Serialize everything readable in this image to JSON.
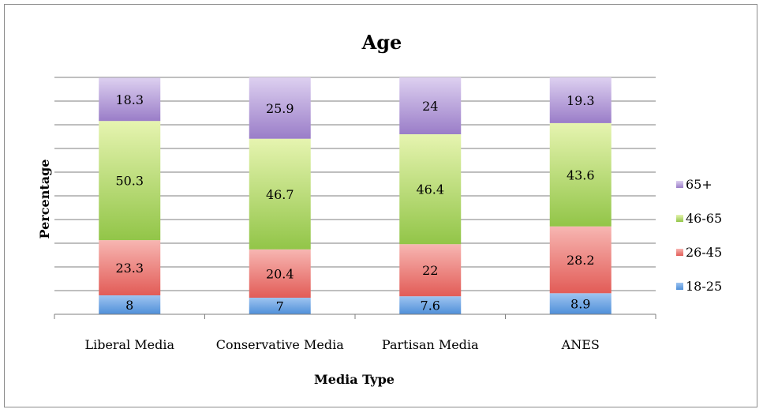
{
  "chart_data": {
    "type": "bar",
    "stacked": true,
    "title": "Age",
    "xlabel": "Media Type",
    "ylabel": "Percentage",
    "ylim": [
      0,
      100
    ],
    "grid": true,
    "legend_position": "right",
    "categories": [
      "Liberal Media",
      "Conservative Media",
      "Partisan Media",
      "ANES"
    ],
    "series": [
      {
        "name": "18-25",
        "values": [
          8,
          7,
          7.6,
          8.9
        ],
        "labels": [
          "8",
          "7",
          "7.6",
          "8.9"
        ],
        "color": "#4f81bd"
      },
      {
        "name": "26-45",
        "values": [
          23.3,
          20.4,
          22,
          28.2
        ],
        "labels": [
          "23.3",
          "20.4",
          "22",
          "28.2"
        ],
        "color": "#e26b69"
      },
      {
        "name": "46-65",
        "values": [
          50.3,
          46.7,
          46.4,
          43.6
        ],
        "labels": [
          "50.3",
          "46.7",
          "46.4",
          "43.6"
        ],
        "color": "#9bbb59"
      },
      {
        "name": "65+",
        "values": [
          18.3,
          25.9,
          24,
          19.3
        ],
        "labels": [
          "18.3",
          "25.9",
          "24",
          "19.3"
        ],
        "color": "#8064a2"
      }
    ],
    "gradients": {
      "18-25": [
        "#9ec4f0",
        "#4f8fd9"
      ],
      "26-45": [
        "#f7b6b2",
        "#e25c57"
      ],
      "46-65": [
        "#e6f4b0",
        "#92c548"
      ],
      "65+": [
        "#ddd0f0",
        "#9a7dc8"
      ]
    }
  }
}
